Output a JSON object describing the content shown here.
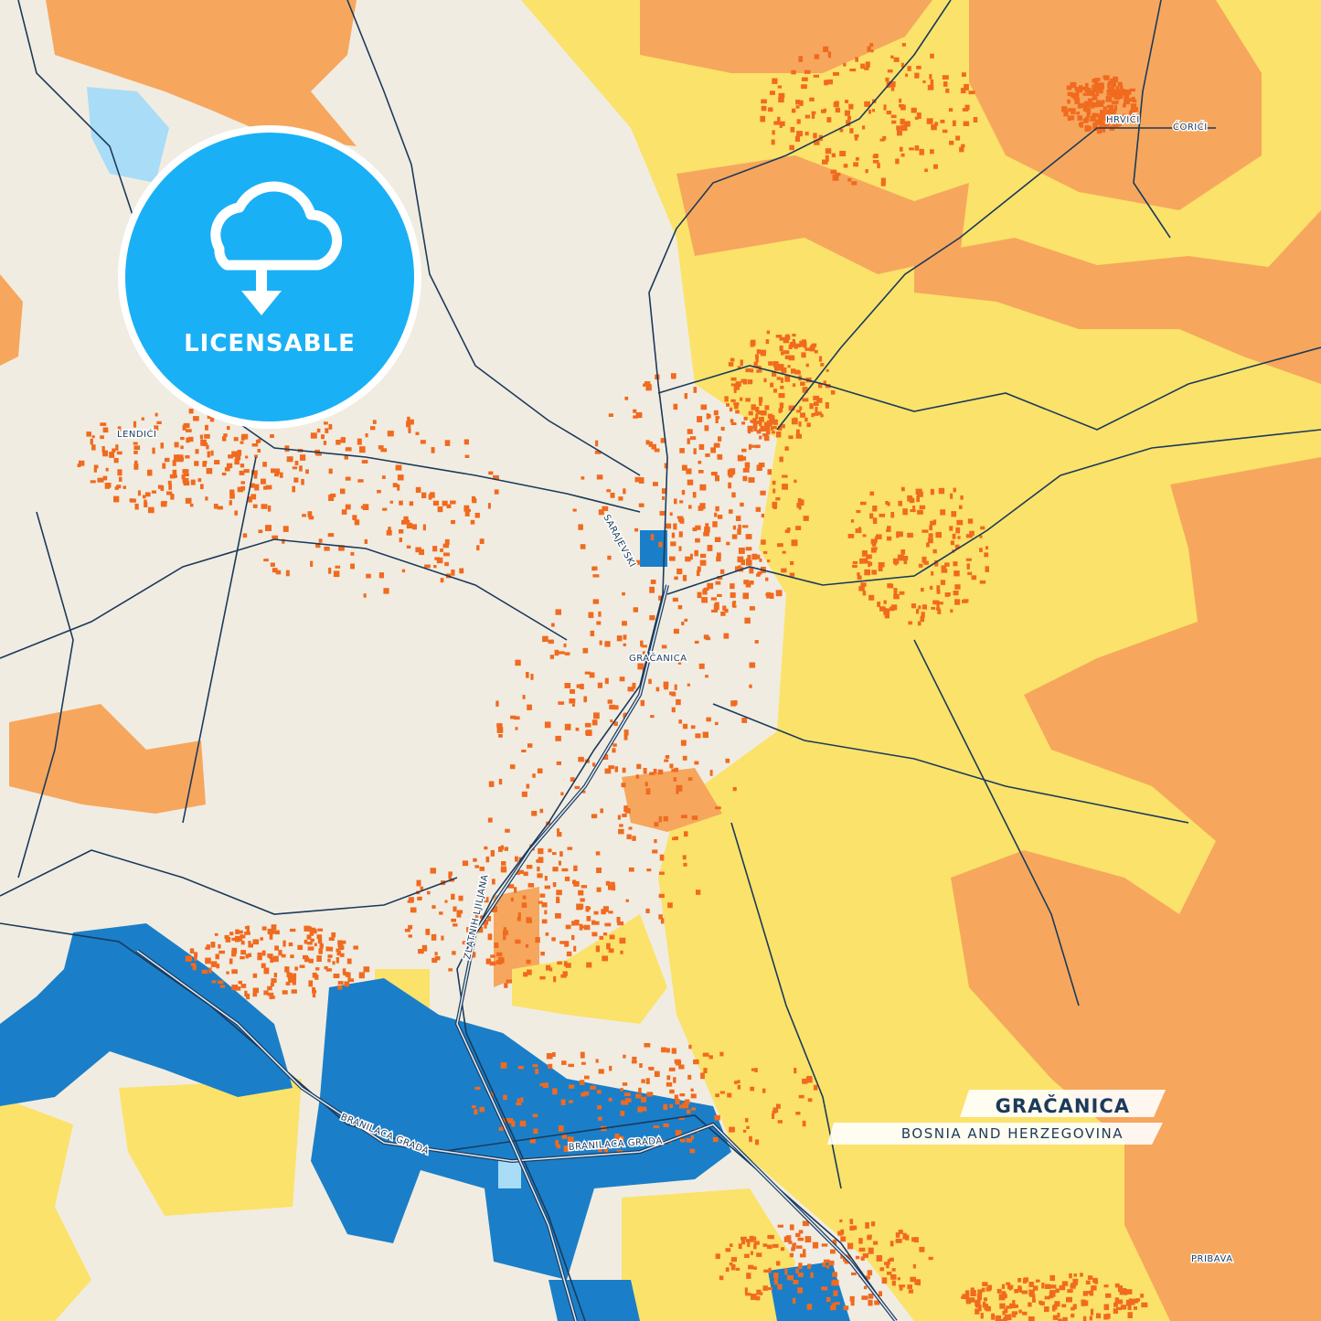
{
  "badge": {
    "label": "LICENSABLE"
  },
  "title": {
    "city": "GRAČANICA",
    "country": "BOSNIA AND HERZEGOVINA"
  },
  "places": [
    "HRVIĆI",
    "ĆORIĆI",
    "LENDIĆI",
    "GRAČANICA",
    "PRIBAVA"
  ],
  "streets": [
    "SARAJEVSKI",
    "ZLATNIH LJILJANA",
    "BRANILACA GRADA",
    "BRANILACA GRADA"
  ]
}
